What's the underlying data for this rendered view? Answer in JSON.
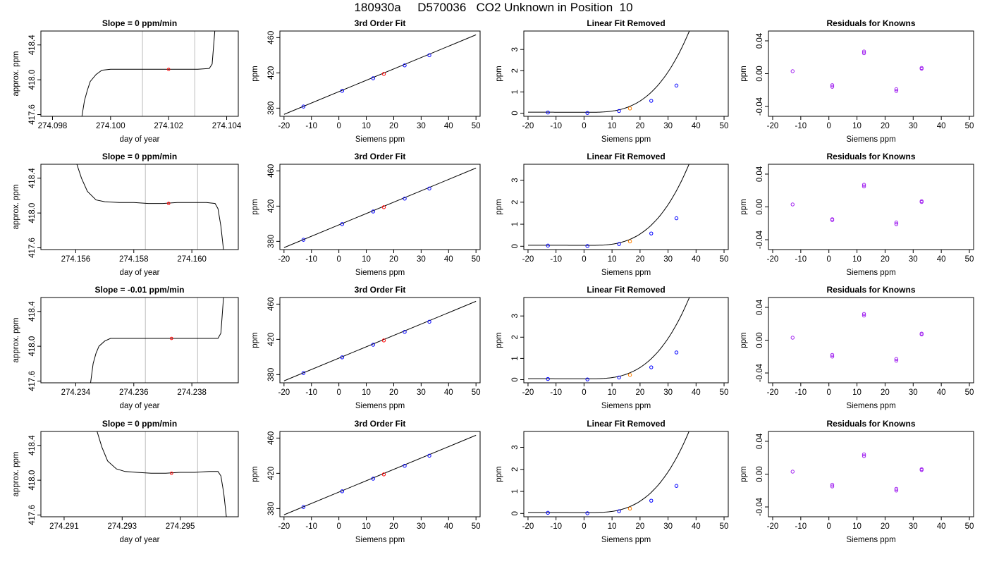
{
  "header": {
    "run": "180930a",
    "tank": "D570036",
    "description": "CO2 Unknown in Position  10"
  },
  "colors": {
    "line": "#000000",
    "frame": "#000000",
    "window_lines": "#c8c8c8",
    "known_points": "#0000ff",
    "unknown_point": "#ff0000",
    "unknown_point_linear_removed": "#ff8000",
    "residual_points": "#a020f0"
  },
  "chart_data": [
    {
      "type": "line",
      "panel": "timeseries",
      "row": 1,
      "title": "Slope =  0  ppm/min",
      "xlabel": "day of year",
      "ylabel": "approx. ppm",
      "xlim": [
        274.0976,
        274.1044
      ],
      "ylim": [
        417.58,
        418.56
      ],
      "xticks": [
        274.098,
        274.1,
        274.102,
        274.104
      ],
      "xtick_labels": [
        "274.098",
        "274.100",
        "274.102",
        "274.104"
      ],
      "yticks": [
        417.6,
        418.0,
        418.4
      ],
      "ytick_labels": [
        "417.6",
        "418.0",
        "418.4"
      ],
      "window": [
        274.1011,
        274.1029
      ],
      "marker": {
        "x": 274.102,
        "y": 418.12
      },
      "trace": [
        [
          274.099,
          417.55
        ],
        [
          274.0991,
          417.76
        ],
        [
          274.0992,
          417.88
        ],
        [
          274.0993,
          417.98
        ],
        [
          274.0995,
          418.06
        ],
        [
          274.0997,
          418.11
        ],
        [
          274.1,
          418.12
        ],
        [
          274.1005,
          418.12
        ],
        [
          274.101,
          418.12
        ],
        [
          274.1015,
          418.12
        ],
        [
          274.102,
          418.12
        ],
        [
          274.1025,
          418.12
        ],
        [
          274.103,
          418.12
        ],
        [
          274.1034,
          418.13
        ],
        [
          274.1035,
          418.18
        ],
        [
          274.1036,
          418.6
        ]
      ]
    },
    {
      "type": "line",
      "panel": "fit",
      "row": 1,
      "title": "3rd Order Fit",
      "xlabel": "Siemens ppm",
      "ylabel": "ppm",
      "xlim": [
        -21.5,
        51.5
      ],
      "ylim": [
        370.7,
        467.5
      ],
      "xticks": [
        -20,
        -10,
        0,
        10,
        20,
        30,
        40,
        50
      ],
      "yticks": [
        380,
        420,
        460
      ],
      "ytick_labels": [
        "380",
        "420",
        "460"
      ],
      "curve_x": [
        -20,
        50
      ],
      "curve_y": [
        372.9,
        463.2
      ],
      "knowns": [
        [
          -12.9,
          381.8
        ],
        [
          1.2,
          399.6
        ],
        [
          12.5,
          413.9
        ],
        [
          24.0,
          428.5
        ],
        [
          33.0,
          440.0
        ]
      ],
      "unknown": [
        16.4,
        418.8
      ]
    },
    {
      "type": "line",
      "panel": "linear_removed",
      "row": 1,
      "title": "Linear Fit Removed",
      "xlabel": "Siemens ppm",
      "ylabel": "ppm",
      "xlim": [
        -21.5,
        51.5
      ],
      "ylim": [
        -0.15,
        3.87
      ],
      "xticks": [
        -20,
        -10,
        0,
        10,
        20,
        30,
        40,
        50
      ],
      "yticks": [
        0,
        1,
        2,
        3
      ],
      "ytick_labels": [
        "0",
        "1",
        "2",
        "3"
      ],
      "curve": {
        "knot": 1.0,
        "a": 7.85e-05,
        "e": 1.2e-05
      },
      "knowns": [
        [
          -12.9,
          0.03
        ],
        [
          1.2,
          0.01
        ],
        [
          12.5,
          0.1
        ],
        [
          24.0,
          0.58
        ],
        [
          33.0,
          1.3
        ]
      ],
      "unknown": [
        16.4,
        0.22
      ]
    },
    {
      "type": "scatter",
      "panel": "residuals",
      "row": 1,
      "title": "Residuals for Knowns",
      "xlabel": "Siemens ppm",
      "ylabel": "ppm",
      "xlim": [
        -21.5,
        51.5
      ],
      "ylim": [
        -0.052,
        0.052
      ],
      "xticks": [
        -20,
        -10,
        0,
        10,
        20,
        30,
        40,
        50
      ],
      "yticks": [
        -0.04,
        0.0,
        0.04
      ],
      "ytick_labels": [
        "-0.04",
        "0.00",
        "0.04"
      ],
      "points": [
        [
          -12.9,
          0.003
        ],
        [
          1.2,
          -0.014
        ],
        [
          1.2,
          -0.016
        ],
        [
          12.5,
          0.025
        ],
        [
          12.5,
          0.027
        ],
        [
          24.0,
          -0.019
        ],
        [
          24.0,
          -0.021
        ],
        [
          33.0,
          0.006
        ],
        [
          33.0,
          0.007
        ]
      ]
    },
    {
      "type": "line",
      "panel": "timeseries",
      "row": 2,
      "title": "Slope =  0  ppm/min",
      "xlabel": "day of year",
      "ylabel": "approx. ppm",
      "xlim": [
        274.1548,
        274.1616
      ],
      "ylim": [
        417.58,
        418.56
      ],
      "xticks": [
        274.156,
        274.158,
        274.16
      ],
      "xtick_labels": [
        "274.156",
        "274.158",
        "274.160"
      ],
      "yticks": [
        417.6,
        418.0,
        418.4
      ],
      "ytick_labels": [
        "417.6",
        "418.0",
        "418.4"
      ],
      "window": [
        274.1584,
        274.1602
      ],
      "marker": {
        "x": 274.1592,
        "y": 418.11
      },
      "trace": [
        [
          274.156,
          418.6
        ],
        [
          274.1562,
          418.4
        ],
        [
          274.1564,
          418.25
        ],
        [
          274.1567,
          418.15
        ],
        [
          274.157,
          418.13
        ],
        [
          274.1575,
          418.12
        ],
        [
          274.158,
          418.12
        ],
        [
          274.1585,
          418.11
        ],
        [
          274.159,
          418.11
        ],
        [
          274.1595,
          418.12
        ],
        [
          274.16,
          418.12
        ],
        [
          274.1605,
          418.12
        ],
        [
          274.1608,
          418.11
        ],
        [
          274.1609,
          418.05
        ],
        [
          274.161,
          417.85
        ],
        [
          274.1611,
          417.55
        ]
      ]
    },
    {
      "type": "line",
      "panel": "fit",
      "row": 2,
      "title": "3rd Order Fit",
      "xlabel": "Siemens ppm",
      "ylabel": "ppm",
      "xlim": [
        -21.5,
        51.5
      ],
      "ylim": [
        370.7,
        467.5
      ],
      "xticks": [
        -20,
        -10,
        0,
        10,
        20,
        30,
        40,
        50
      ],
      "yticks": [
        380,
        420,
        460
      ],
      "ytick_labels": [
        "380",
        "420",
        "460"
      ],
      "curve_x": [
        -20,
        50
      ],
      "curve_y": [
        372.9,
        463.2
      ],
      "knowns": [
        [
          -12.9,
          381.8
        ],
        [
          1.2,
          399.6
        ],
        [
          12.5,
          413.9
        ],
        [
          24.0,
          428.5
        ],
        [
          33.0,
          440.0
        ]
      ],
      "unknown": [
        16.4,
        418.8
      ]
    },
    {
      "type": "line",
      "panel": "linear_removed",
      "row": 2,
      "title": "Linear Fit Removed",
      "xlabel": "Siemens ppm",
      "ylabel": "ppm",
      "xlim": [
        -21.5,
        51.5
      ],
      "ylim": [
        -0.15,
        3.72
      ],
      "xticks": [
        -20,
        -10,
        0,
        10,
        20,
        30,
        40,
        50
      ],
      "yticks": [
        0,
        1,
        2,
        3
      ],
      "ytick_labels": [
        "0",
        "1",
        "2",
        "3"
      ],
      "curve": {
        "knot": 1.0,
        "a": 7.62e-05,
        "e": 1.2e-05
      },
      "knowns": [
        [
          -12.9,
          0.03
        ],
        [
          1.2,
          0.01
        ],
        [
          12.5,
          0.1
        ],
        [
          24.0,
          0.58
        ],
        [
          33.0,
          1.27
        ]
      ],
      "unknown": [
        16.4,
        0.22
      ]
    },
    {
      "type": "scatter",
      "panel": "residuals",
      "row": 2,
      "title": "Residuals for Knowns",
      "xlabel": "Siemens ppm",
      "ylabel": "ppm",
      "xlim": [
        -21.5,
        51.5
      ],
      "ylim": [
        -0.052,
        0.052
      ],
      "xticks": [
        -20,
        -10,
        0,
        10,
        20,
        30,
        40,
        50
      ],
      "yticks": [
        -0.04,
        0.0,
        0.04
      ],
      "ytick_labels": [
        "-0.04",
        "0.00",
        "0.04"
      ],
      "points": [
        [
          -12.9,
          0.003
        ],
        [
          1.2,
          -0.015
        ],
        [
          1.2,
          -0.016
        ],
        [
          12.5,
          0.025
        ],
        [
          12.5,
          0.027
        ],
        [
          24.0,
          -0.019
        ],
        [
          24.0,
          -0.021
        ],
        [
          33.0,
          0.006
        ],
        [
          33.0,
          0.007
        ]
      ]
    },
    {
      "type": "line",
      "panel": "timeseries",
      "row": 3,
      "title": "Slope =  -0.01  ppm/min",
      "xlabel": "day of year",
      "ylabel": "approx. ppm",
      "xlim": [
        274.2328,
        274.2396
      ],
      "ylim": [
        417.58,
        418.56
      ],
      "xticks": [
        274.234,
        274.236,
        274.238
      ],
      "xtick_labels": [
        "274.234",
        "274.236",
        "274.238"
      ],
      "yticks": [
        417.6,
        418.0,
        418.4
      ],
      "ytick_labels": [
        "417.6",
        "418.0",
        "418.4"
      ],
      "window": [
        274.2364,
        274.2382
      ],
      "marker": {
        "x": 274.2373,
        "y": 418.09
      },
      "trace": [
        [
          274.2345,
          417.55
        ],
        [
          274.2346,
          417.8
        ],
        [
          274.2347,
          417.92
        ],
        [
          274.2348,
          418.0
        ],
        [
          274.235,
          418.06
        ],
        [
          274.2352,
          418.09
        ],
        [
          274.2355,
          418.09
        ],
        [
          274.236,
          418.09
        ],
        [
          274.2365,
          418.09
        ],
        [
          274.237,
          418.09
        ],
        [
          274.2375,
          418.09
        ],
        [
          274.238,
          418.09
        ],
        [
          274.2385,
          418.09
        ],
        [
          274.2389,
          418.09
        ],
        [
          274.239,
          418.15
        ],
        [
          274.2391,
          418.6
        ]
      ]
    },
    {
      "type": "line",
      "panel": "fit",
      "row": 3,
      "title": "3rd Order Fit",
      "xlabel": "Siemens ppm",
      "ylabel": "ppm",
      "xlim": [
        -21.5,
        51.5
      ],
      "ylim": [
        370.7,
        467.5
      ],
      "xticks": [
        -20,
        -10,
        0,
        10,
        20,
        30,
        40,
        50
      ],
      "yticks": [
        380,
        420,
        460
      ],
      "ytick_labels": [
        "380",
        "420",
        "460"
      ],
      "curve_x": [
        -20,
        50
      ],
      "curve_y": [
        372.9,
        463.2
      ],
      "knowns": [
        [
          -12.9,
          381.8
        ],
        [
          1.2,
          399.6
        ],
        [
          12.5,
          413.9
        ],
        [
          24.0,
          428.5
        ],
        [
          33.0,
          440.0
        ]
      ],
      "unknown": [
        16.4,
        418.8
      ]
    },
    {
      "type": "line",
      "panel": "linear_removed",
      "row": 3,
      "title": "Linear Fit Removed",
      "xlabel": "Siemens ppm",
      "ylabel": "ppm",
      "xlim": [
        -21.5,
        51.5
      ],
      "ylim": [
        -0.15,
        3.87
      ],
      "xticks": [
        -20,
        -10,
        0,
        10,
        20,
        30,
        40,
        50
      ],
      "yticks": [
        0,
        1,
        2,
        3
      ],
      "ytick_labels": [
        "0",
        "1",
        "2",
        "3"
      ],
      "curve": {
        "knot": 1.0,
        "a": 7.85e-05,
        "e": 1.2e-05
      },
      "knowns": [
        [
          -12.9,
          0.03
        ],
        [
          1.2,
          0.01
        ],
        [
          12.5,
          0.1
        ],
        [
          24.0,
          0.58
        ],
        [
          33.0,
          1.28
        ]
      ],
      "unknown": [
        16.4,
        0.22
      ]
    },
    {
      "type": "scatter",
      "panel": "residuals",
      "row": 3,
      "title": "Residuals for Knowns",
      "xlabel": "Siemens ppm",
      "ylabel": "ppm",
      "xlim": [
        -21.5,
        51.5
      ],
      "ylim": [
        -0.052,
        0.052
      ],
      "xticks": [
        -20,
        -10,
        0,
        10,
        20,
        30,
        40,
        50
      ],
      "yticks": [
        -0.04,
        0.0,
        0.04
      ],
      "ytick_labels": [
        "-0.04",
        "0.00",
        "0.04"
      ],
      "points": [
        [
          -12.9,
          0.003
        ],
        [
          1.2,
          -0.018
        ],
        [
          1.2,
          -0.02
        ],
        [
          12.5,
          0.03
        ],
        [
          12.5,
          0.032
        ],
        [
          24.0,
          -0.023
        ],
        [
          24.0,
          -0.025
        ],
        [
          33.0,
          0.007
        ],
        [
          33.0,
          0.008
        ]
      ]
    },
    {
      "type": "line",
      "panel": "timeseries",
      "row": 4,
      "title": "Slope =  0  ppm/min",
      "xlabel": "day of year",
      "ylabel": "approx. ppm",
      "xlim": [
        274.2902,
        274.297
      ],
      "ylim": [
        417.58,
        418.56
      ],
      "xticks": [
        274.291,
        274.293,
        274.295
      ],
      "xtick_labels": [
        "274.291",
        "274.293",
        "274.295"
      ],
      "yticks": [
        417.6,
        418.0,
        418.4
      ],
      "ytick_labels": [
        "417.6",
        "418.0",
        "418.4"
      ],
      "window": [
        274.2938,
        274.2956
      ],
      "marker": {
        "x": 274.2947,
        "y": 418.08
      },
      "trace": [
        [
          274.2921,
          418.6
        ],
        [
          274.2923,
          418.38
        ],
        [
          274.2925,
          418.22
        ],
        [
          274.2928,
          418.13
        ],
        [
          274.2931,
          418.1
        ],
        [
          274.2935,
          418.09
        ],
        [
          274.294,
          418.08
        ],
        [
          274.2945,
          418.08
        ],
        [
          274.295,
          418.09
        ],
        [
          274.2955,
          418.09
        ],
        [
          274.296,
          418.1
        ],
        [
          274.2963,
          418.1
        ],
        [
          274.2964,
          418.05
        ],
        [
          274.2965,
          417.85
        ],
        [
          274.2966,
          417.55
        ]
      ]
    },
    {
      "type": "line",
      "panel": "fit",
      "row": 4,
      "title": "3rd Order Fit",
      "xlabel": "Siemens ppm",
      "ylabel": "ppm",
      "xlim": [
        -21.5,
        51.5
      ],
      "ylim": [
        370.7,
        467.5
      ],
      "xticks": [
        -20,
        -10,
        0,
        10,
        20,
        30,
        40,
        50
      ],
      "yticks": [
        380,
        420,
        460
      ],
      "ytick_labels": [
        "380",
        "420",
        "460"
      ],
      "curve_x": [
        -20,
        50
      ],
      "curve_y": [
        372.9,
        463.2
      ],
      "knowns": [
        [
          -12.9,
          381.8
        ],
        [
          1.2,
          399.6
        ],
        [
          12.5,
          413.9
        ],
        [
          24.0,
          428.5
        ],
        [
          33.0,
          440.0
        ]
      ],
      "unknown": [
        16.4,
        418.8
      ]
    },
    {
      "type": "line",
      "panel": "linear_removed",
      "row": 4,
      "title": "Linear Fit Removed",
      "xlabel": "Siemens ppm",
      "ylabel": "ppm",
      "xlim": [
        -21.5,
        51.5
      ],
      "ylim": [
        -0.15,
        3.72
      ],
      "xticks": [
        -20,
        -10,
        0,
        10,
        20,
        30,
        40,
        50
      ],
      "yticks": [
        0,
        1,
        2,
        3
      ],
      "ytick_labels": [
        "0",
        "1",
        "2",
        "3"
      ],
      "curve": {
        "knot": 1.0,
        "a": 7.62e-05,
        "e": 1.2e-05
      },
      "knowns": [
        [
          -12.9,
          0.03
        ],
        [
          1.2,
          0.01
        ],
        [
          12.5,
          0.1
        ],
        [
          24.0,
          0.58
        ],
        [
          33.0,
          1.25
        ]
      ],
      "unknown": [
        16.4,
        0.22
      ]
    },
    {
      "type": "scatter",
      "panel": "residuals",
      "row": 4,
      "title": "Residuals for Knowns",
      "xlabel": "Siemens ppm",
      "ylabel": "ppm",
      "xlim": [
        -21.5,
        51.5
      ],
      "ylim": [
        -0.052,
        0.052
      ],
      "xticks": [
        -20,
        -10,
        0,
        10,
        20,
        30,
        40,
        50
      ],
      "yticks": [
        -0.04,
        0.0,
        0.04
      ],
      "ytick_labels": [
        "-0.04",
        "0.00",
        "0.04"
      ],
      "points": [
        [
          -12.9,
          0.003
        ],
        [
          1.2,
          -0.013
        ],
        [
          1.2,
          -0.015
        ],
        [
          12.5,
          0.022
        ],
        [
          12.5,
          0.024
        ],
        [
          24.0,
          -0.018
        ],
        [
          24.0,
          -0.02
        ],
        [
          33.0,
          0.005
        ],
        [
          33.0,
          0.006
        ]
      ]
    }
  ]
}
